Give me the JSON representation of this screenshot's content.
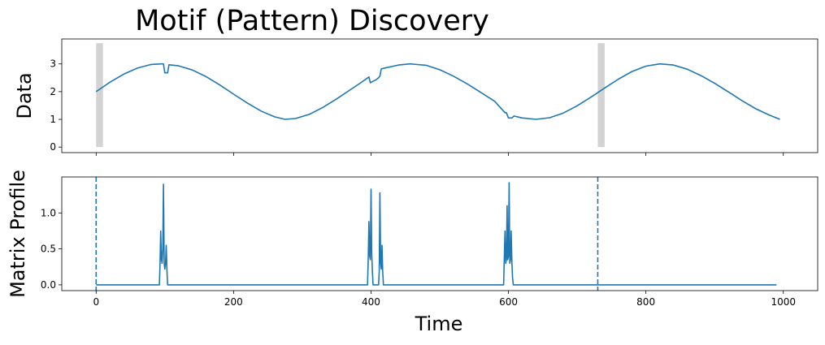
{
  "title": "Motif (Pattern) Discovery",
  "chart_data": [
    {
      "type": "line",
      "ylabel": "Data",
      "xlim": [
        -50,
        1050
      ],
      "ylim": [
        -0.2,
        3.9
      ],
      "yticks": [
        0,
        1,
        2,
        3
      ],
      "yticklabels": [
        "0",
        "1",
        "2",
        "3"
      ],
      "xticks": [
        0,
        200,
        400,
        600,
        800,
        1000
      ],
      "show_xticklabels": false,
      "grid": false,
      "line_color": "#1f77b4",
      "highlight_color": "#d3d3d3",
      "motif_window_starts": [
        0,
        730
      ],
      "motif_window_length": 10,
      "series": [
        {
          "x": [
            0,
            20,
            40,
            60,
            80,
            95,
            98,
            100,
            102,
            104,
            106,
            120,
            140,
            160,
            180,
            200,
            220,
            240,
            260,
            275,
            290,
            310,
            330,
            350,
            370,
            385,
            397,
            399,
            402,
            405,
            408,
            411,
            413,
            415,
            418,
            440,
            457,
            480,
            500,
            520,
            540,
            560,
            580,
            595,
            597,
            600,
            603,
            605,
            608,
            620,
            640,
            660,
            680,
            700,
            720,
            740,
            760,
            780,
            800,
            820,
            840,
            860,
            880,
            900,
            920,
            940,
            960,
            980,
            995
          ],
          "y": [
            2.0,
            2.34,
            2.63,
            2.85,
            2.98,
            3.0,
            3.0,
            2.68,
            2.68,
            2.68,
            2.97,
            2.93,
            2.78,
            2.54,
            2.24,
            1.91,
            1.59,
            1.3,
            1.09,
            1.0,
            1.03,
            1.18,
            1.43,
            1.74,
            2.07,
            2.32,
            2.53,
            2.32,
            2.36,
            2.4,
            2.44,
            2.5,
            2.56,
            2.82,
            2.84,
            2.96,
            3.0,
            2.95,
            2.79,
            2.56,
            2.28,
            1.97,
            1.65,
            1.24,
            1.24,
            1.05,
            1.05,
            1.05,
            1.12,
            1.05,
            1.0,
            1.06,
            1.23,
            1.49,
            1.8,
            2.13,
            2.45,
            2.73,
            2.92,
            3.0,
            2.96,
            2.81,
            2.58,
            2.3,
            1.99,
            1.67,
            1.38,
            1.15,
            1.0
          ]
        }
      ]
    },
    {
      "type": "line",
      "xlabel": "Time",
      "ylabel": "Matrix Profile",
      "xlim": [
        -50,
        1050
      ],
      "ylim": [
        -0.08,
        1.5
      ],
      "yticks": [
        0,
        0.5,
        1
      ],
      "yticklabels": [
        "0.0",
        "0.5",
        "1.0"
      ],
      "xticks": [
        0,
        200,
        400,
        600,
        800,
        1000
      ],
      "xticklabels": [
        "0",
        "200",
        "400",
        "600",
        "800",
        "1000"
      ],
      "grid": false,
      "line_color": "#1f77b4",
      "motif_lines_x": [
        0,
        730
      ],
      "series": [
        {
          "x": [
            0,
            92,
            93,
            94,
            95,
            96,
            97,
            98,
            99,
            100,
            101,
            102,
            103,
            104,
            105,
            106,
            395,
            396,
            397,
            398,
            399,
            400,
            401,
            402,
            403,
            404,
            405,
            406,
            407,
            408,
            409,
            410,
            411,
            412,
            413,
            414,
            415,
            416,
            417,
            418,
            419,
            593,
            594,
            595,
            596,
            597,
            598,
            599,
            600,
            601,
            602,
            603,
            604,
            605,
            606,
            607,
            608,
            609,
            610,
            611,
            612,
            990
          ],
          "y": [
            0,
            0,
            0.3,
            0.75,
            0.35,
            0.3,
            0.5,
            1.4,
            0.3,
            0.22,
            0.3,
            0.55,
            0.2,
            0,
            0,
            0,
            0,
            0.4,
            0.88,
            0.4,
            0.35,
            1.33,
            0.45,
            0.2,
            0,
            0,
            0,
            0,
            0,
            0,
            0,
            0,
            0,
            0.2,
            1.28,
            0.3,
            0.22,
            0.55,
            0.2,
            0,
            0,
            0,
            0.4,
            0.75,
            0.3,
            0.35,
            1.1,
            0.35,
            0.4,
            1.42,
            0.3,
            0.35,
            0.75,
            0.3,
            0.1,
            0,
            0,
            0,
            0,
            0,
            0,
            0
          ]
        }
      ]
    }
  ]
}
